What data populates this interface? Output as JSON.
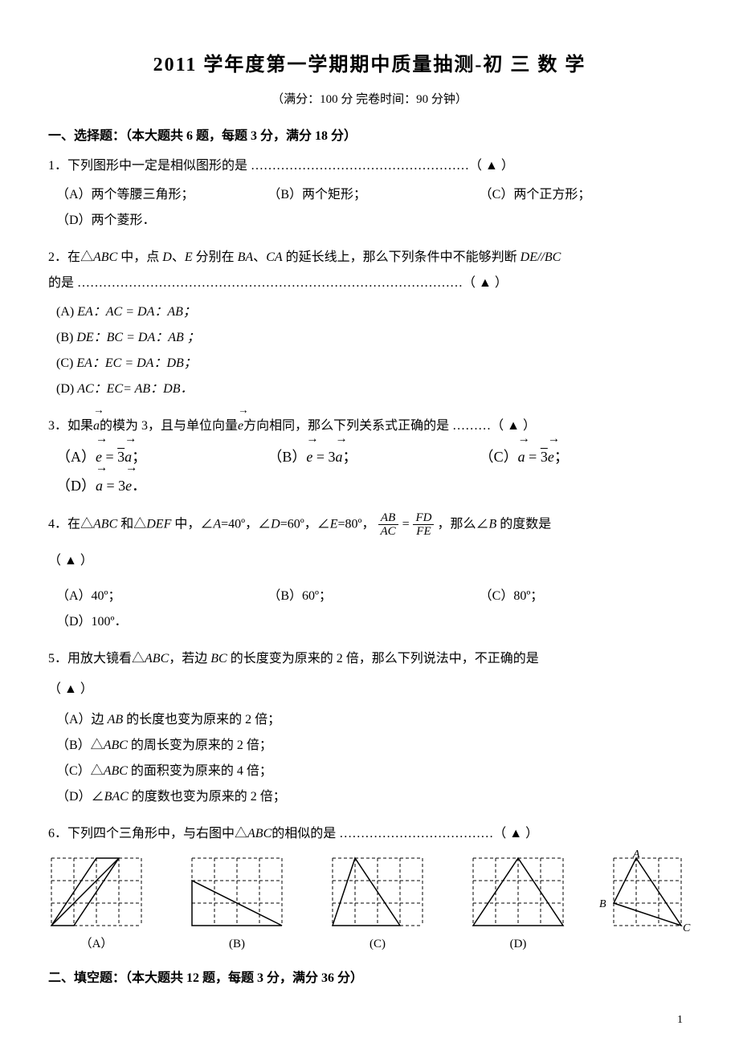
{
  "title": "2011 学年度第一学期期中质量抽测-初 三 数 学",
  "subtitle": "（满分：100 分   完卷时间：90 分钟）",
  "section1": {
    "header": "一、选择题：（本大题共 6 题，每题 3 分，满分 18 分）"
  },
  "q1": {
    "stem": "1．下列图形中一定是相似图形的是 ……………………………………………（  ▲  ）",
    "A": "（A）两个等腰三角形；",
    "B": "（B）两个矩形；",
    "C": "（C）两个正方形；",
    "D": "（D）两个菱形．"
  },
  "q2": {
    "stem_a": "2．在△",
    "stem_b": " 中，点 ",
    "stem_c": "、",
    "stem_d": " 分别在 ",
    "stem_e": "、",
    "stem_f": " 的延长线上，那么下列条件中不能够判断 ",
    "stem_g": "的是 ………………………………………………………………………………（  ▲  ）",
    "ABC": "ABC",
    "D": "D",
    "E": "E",
    "BA": "BA",
    "CA": "CA",
    "DEBC": "DE//BC",
    "optA_pre": "(A)  ",
    "optA": "EA：AC = DA：AB；",
    "optB_pre": "(B)  ",
    "optB": "DE：BC = DA：AB ；",
    "optC_pre": "(C)  ",
    "optC": "EA：EC = DA：DB；",
    "optD_pre": "(D)  ",
    "optD": "AC：EC= AB：DB．"
  },
  "q3": {
    "stem_a": "3．如果",
    "stem_b": "的模为 3，且与单位向量",
    "stem_c": "方向相同，那么下列关系式正确的是 ………（  ▲  ）",
    "A_pre": "（A）",
    "B_pre": "（B）",
    "C_pre": "（C）",
    "D_pre": "（D）",
    "sep": "；",
    "sep_d": "．"
  },
  "q4": {
    "stem_a": "4．在△",
    "ABC": "ABC",
    "stem_b": " 和△",
    "DEF": "DEF",
    "stem_c": " 中，∠",
    "A": "A",
    "eq40": "=40º，∠",
    "D": "D",
    "eq60": "=60º，∠",
    "E": "E",
    "eq80": "=80º，",
    "frac1n": "AB",
    "frac1d": "AC",
    "frac2n": "FD",
    "frac2d": "FE",
    "stem_d": "，那么∠",
    "B": "B",
    "stem_e": " 的度数是",
    "paren": "（  ▲  ）",
    "optA": "（A）40º；",
    "optB": "（B）60º；",
    "optC": "（C）80º；",
    "optD": "（D）100º．"
  },
  "q5": {
    "stem_a": "5．用放大镜看△",
    "ABC": "ABC",
    "stem_b": "，若边 ",
    "BC": "BC",
    "stem_c": " 的长度变为原来的 2 倍，那么下列说法中，不正确的是",
    "paren": "（  ▲  ）",
    "A_a": "（A）边 ",
    "A_ab": "AB",
    "A_b": " 的长度也变为原来的 2 倍；",
    "B_a": "（B）△",
    "B_abc": "ABC",
    "B_b": " 的周长变为原来的 2 倍；",
    "C_a": "（C）△",
    "C_abc": "ABC",
    "C_b": " 的面积变为原来的 4 倍；",
    "D_a": "（D）∠",
    "D_bac": "BAC",
    "D_b": " 的度数也变为原来的 2 倍；"
  },
  "q6": {
    "stem_a": "6．下列四个三角形中，与右图中△",
    "ABC": "ABC",
    "stem_b": "的相似的是 ………………………………（  ▲  ）",
    "labA": "（A）",
    "labB": "(B)",
    "labC": "(C)",
    "labD": "(D)",
    "ptA": "A",
    "ptB": "B",
    "ptC": "C"
  },
  "section2": {
    "header": "二、填空题：（本大题共 12 题，每题 3 分，满分 36 分）"
  },
  "pageNum": "1",
  "colors": {
    "stroke": "#000000",
    "dash": "4,3"
  },
  "grid": {
    "cell": 28,
    "cols": 4,
    "rows": 3
  },
  "gridR": {
    "cell": 28,
    "cols": 3,
    "rows": 3
  }
}
